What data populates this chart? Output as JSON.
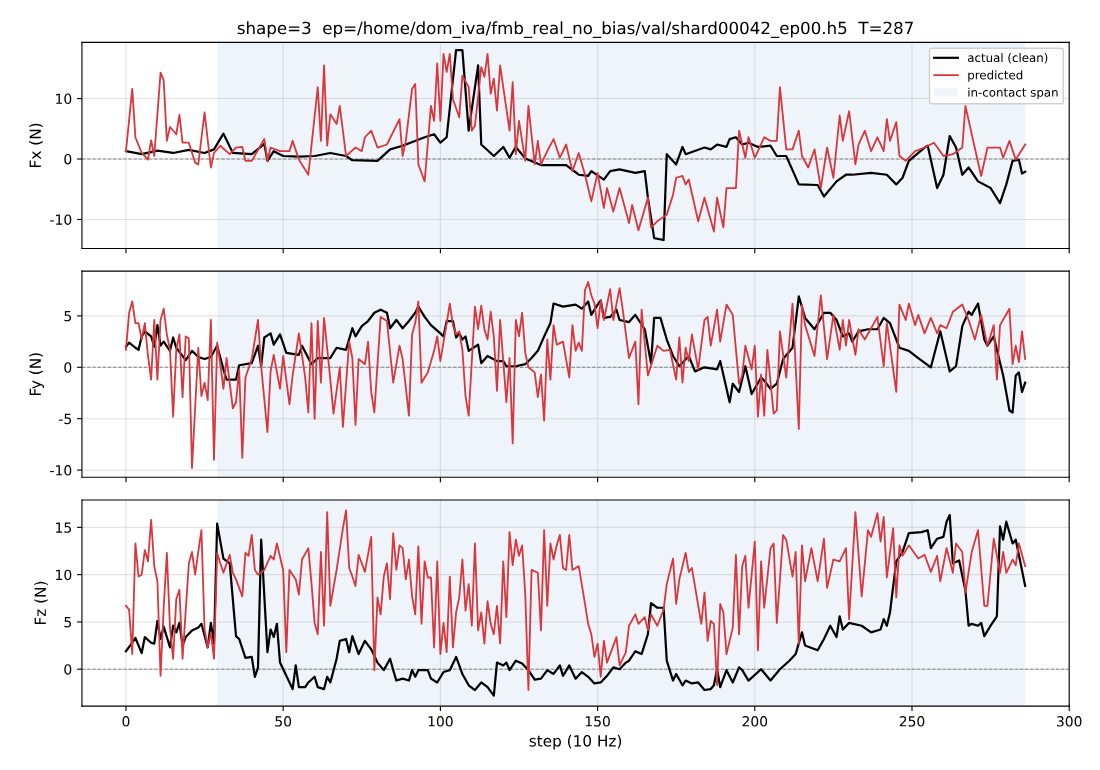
{
  "chart_data": [
    {
      "type": "line",
      "title": "shape=3  ep=/home/dom_iva/fmb_real_no_bias/val/shard00042_ep00.h5  T=287",
      "ylabel": "Fx (N)",
      "xlim": [
        -14,
        300
      ],
      "xticks": [
        0,
        50,
        100,
        150,
        200,
        250,
        300
      ],
      "ylim": [
        -14.8,
        19.3
      ],
      "yticks": [
        -10,
        0,
        10
      ],
      "grid": true,
      "legend": "top right",
      "tick_labels": "y",
      "bands": [
        {
          "axis": "x",
          "from": 29,
          "to": 286,
          "label": "in-contact span",
          "color": "#eef4f9"
        }
      ],
      "ref_lines": [
        {
          "axis": "y",
          "value": 0,
          "color": "#808080",
          "line_style": "dashed"
        }
      ],
      "series": [
        {
          "name": "actual (clean)",
          "color": "#000000",
          "x": [
            0,
            5,
            10,
            15,
            20,
            25,
            28,
            31,
            34,
            40,
            44,
            45,
            47,
            50,
            55,
            60,
            65,
            70,
            72,
            80,
            84,
            88,
            95,
            98,
            100,
            102,
            105,
            107,
            109,
            112,
            113,
            117,
            120,
            122,
            124,
            127,
            132,
            140,
            144,
            147,
            148,
            152,
            154,
            157,
            162,
            165,
            166,
            168,
            171,
            172,
            175,
            177,
            178,
            184,
            186,
            188,
            191,
            192,
            194,
            196,
            198,
            201,
            205,
            207,
            210,
            214,
            220,
            222,
            226,
            229,
            231,
            237,
            242,
            245,
            247,
            249,
            254,
            255,
            258,
            260,
            262,
            264,
            266,
            268,
            271,
            275,
            278,
            280,
            282,
            284,
            285,
            286
          ],
          "values": [
            1.3,
            0.8,
            1.4,
            1.0,
            1.5,
            1.0,
            1.6,
            4.2,
            1.0,
            0.8,
            2.5,
            -0.3,
            1.3,
            0.5,
            0.4,
            0.5,
            1.0,
            0.5,
            -0.2,
            -0.3,
            1.6,
            2.2,
            3.6,
            4.1,
            2.7,
            3.6,
            18.0,
            18.0,
            4.7,
            15.5,
            2.4,
            0.5,
            2.0,
            0.2,
            2.0,
            0.1,
            -1.0,
            -1.0,
            -2.6,
            -2.8,
            -2.0,
            -3.4,
            -2.0,
            -1.7,
            -2.3,
            -2.0,
            -6.4,
            -13.1,
            -13.4,
            0.8,
            -0.9,
            2.0,
            0.8,
            1.9,
            1.6,
            2.4,
            2.0,
            3.3,
            3.6,
            2.4,
            2.7,
            2.0,
            2.2,
            0.5,
            0.5,
            -4.2,
            -4.3,
            -6.2,
            -3.7,
            -2.6,
            -2.6,
            -2.3,
            -2.6,
            -4.2,
            -3.1,
            -0.3,
            1.9,
            2.2,
            -4.8,
            -2.6,
            3.8,
            1.9,
            -2.6,
            -1.4,
            -3.7,
            -4.8,
            -7.3,
            -4.2,
            -0.3,
            -0.1,
            -2.4,
            -2.1
          ]
        },
        {
          "name": "predicted",
          "color": "#d8373d",
          "x": [
            0,
            2,
            3,
            5,
            7,
            8,
            9,
            11,
            12,
            13,
            14,
            16,
            17,
            18,
            20,
            22,
            23,
            25,
            27,
            28,
            30,
            33,
            35,
            37,
            38,
            40,
            44,
            45,
            46,
            49,
            52,
            53,
            55,
            58,
            61,
            62,
            63,
            64,
            65,
            67,
            68,
            70,
            73,
            75,
            76,
            78,
            80,
            83,
            87,
            88,
            89,
            91,
            92,
            93,
            95,
            97,
            98,
            99,
            100,
            101,
            102,
            103,
            104,
            106,
            107,
            109,
            110,
            111,
            113,
            114,
            115,
            116,
            117,
            118,
            119,
            121,
            122,
            123,
            124,
            125,
            127,
            128,
            130,
            131,
            132,
            134,
            136,
            138,
            140,
            142,
            144,
            146,
            147,
            148,
            150,
            152,
            153,
            155,
            157,
            160,
            161,
            163,
            166,
            167,
            169,
            172,
            174,
            175,
            177,
            178,
            179,
            182,
            184,
            187,
            188,
            190,
            191,
            194,
            195,
            197,
            198,
            200,
            203,
            205,
            207,
            208,
            210,
            212,
            214,
            215,
            217,
            219,
            221,
            223,
            225,
            227,
            228,
            230,
            232,
            233,
            235,
            237,
            239,
            241,
            242,
            243,
            245,
            246,
            248,
            251,
            254,
            257,
            260,
            263,
            266,
            267,
            269,
            272,
            274,
            278,
            279,
            281,
            283,
            286
          ],
          "values": [
            1.3,
            11.6,
            3.6,
            1.0,
            -0.1,
            3.1,
            0.5,
            14.3,
            13.0,
            3.0,
            5.3,
            4.1,
            7.3,
            2.7,
            2.7,
            -0.6,
            -0.9,
            7.7,
            -1.4,
            1.0,
            2.2,
            0.8,
            1.9,
            2.0,
            -0.3,
            -0.3,
            3.3,
            -0.3,
            1.9,
            1.3,
            1.3,
            3.0,
            -0.1,
            -2.6,
            11.9,
            3.0,
            15.5,
            2.2,
            7.4,
            5.8,
            8.8,
            0.5,
            1.9,
            1.3,
            3.6,
            4.7,
            1.9,
            2.4,
            6.6,
            0.5,
            3.0,
            11.6,
            12.4,
            -0.9,
            -3.7,
            8.8,
            6.3,
            15.8,
            6.3,
            17.4,
            14.4,
            17.4,
            9.9,
            6.9,
            13.8,
            11.9,
            4.7,
            5.5,
            15.2,
            13.6,
            17.4,
            10.8,
            13.3,
            8.0,
            15.5,
            8.3,
            4.7,
            12.7,
            0.8,
            6.3,
            -0.3,
            8.8,
            -0.9,
            3.0,
            -0.9,
            1.3,
            3.3,
            0.2,
            2.4,
            -2.0,
            1.0,
            -2.6,
            -4.8,
            -7.0,
            -2.3,
            -8.1,
            -4.8,
            -8.7,
            -4.8,
            -10.6,
            -7.6,
            -11.8,
            -6.4,
            -11.3,
            -10.3,
            -9.2,
            -5.9,
            -3.1,
            -2.8,
            -4.2,
            -3.4,
            -10.3,
            -6.4,
            -12.0,
            -6.4,
            -11.3,
            -4.8,
            -4.8,
            4.7,
            0.2,
            3.6,
            0.2,
            3.6,
            3.0,
            3.0,
            11.9,
            1.6,
            1.6,
            4.7,
            0.5,
            -1.4,
            1.6,
            -4.8,
            1.9,
            -3.1,
            7.2,
            3.0,
            7.9,
            -0.9,
            2.4,
            4.7,
            1.3,
            3.6,
            1.3,
            6.6,
            3.0,
            6.1,
            0.5,
            -0.3,
            1.3,
            1.9,
            2.7,
            0.5,
            0.8,
            1.9,
            8.8,
            4.1,
            -2.8,
            1.9,
            1.9,
            0.2,
            3.0,
            -0.1,
            2.4
          ]
        }
      ]
    },
    {
      "type": "line",
      "ylabel": "Fy (N)",
      "xlim": [
        -14,
        300
      ],
      "xticks": [
        0,
        50,
        100,
        150,
        200,
        250,
        300
      ],
      "ylim": [
        -10.7,
        9.35
      ],
      "yticks": [
        -10,
        -5,
        0,
        5
      ],
      "grid": true,
      "tick_labels": "y",
      "bands": [
        {
          "axis": "x",
          "from": 29,
          "to": 286,
          "color": "#eef4f9"
        }
      ],
      "ref_lines": [
        {
          "axis": "y",
          "value": 0,
          "color": "#808080",
          "line_style": "dashed"
        }
      ],
      "series": [
        {
          "color": "#000000",
          "x": [
            0,
            1,
            3,
            4,
            5,
            6,
            8,
            9,
            10,
            11,
            12,
            14,
            15,
            16,
            19,
            21,
            23,
            25,
            27,
            29,
            31,
            32,
            35,
            36,
            40,
            42,
            43,
            44,
            46,
            47,
            49,
            51,
            55,
            56,
            59,
            61,
            65,
            67,
            70,
            72,
            73,
            75,
            77,
            79,
            81,
            83,
            84,
            86,
            88,
            90,
            92,
            93,
            95,
            97,
            100,
            101,
            102,
            104,
            105,
            106,
            107,
            108,
            109,
            111,
            112,
            113,
            115,
            118,
            120,
            121,
            124,
            127,
            129,
            131,
            133,
            135,
            136,
            139,
            143,
            145,
            147,
            148,
            150,
            151,
            152,
            154,
            156,
            157,
            160,
            162,
            165,
            167,
            168,
            170,
            172,
            174,
            176,
            179,
            181,
            184,
            188,
            189,
            192,
            193,
            195,
            197,
            199,
            202,
            203,
            205,
            207,
            209,
            212,
            214,
            216,
            219,
            222,
            224,
            226,
            228,
            230,
            231,
            233,
            236,
            239,
            241,
            243,
            246,
            249,
            252,
            256,
            259,
            262,
            264,
            266,
            268,
            269,
            271,
            273,
            274,
            276,
            277,
            279,
            281,
            282,
            283,
            284,
            285,
            286
          ],
          "values": [
            2.0,
            2.4,
            1.9,
            1.7,
            3.0,
            3.5,
            3.0,
            2.0,
            4.1,
            2.1,
            2.5,
            1.6,
            2.9,
            1.9,
            0.7,
            1.6,
            1.0,
            0.8,
            1.0,
            2.1,
            -0.2,
            -1.2,
            -1.2,
            0.2,
            0.4,
            2.1,
            0.1,
            2.9,
            3.3,
            2.2,
            3.2,
            1.4,
            1.2,
            2.1,
            0.3,
            0.9,
            0.9,
            1.9,
            1.7,
            3.8,
            3.0,
            4.0,
            4.5,
            5.3,
            5.6,
            5.3,
            3.8,
            4.6,
            3.8,
            4.5,
            5.3,
            5.9,
            4.9,
            4.1,
            3.3,
            3.0,
            4.5,
            4.5,
            2.9,
            3.3,
            2.7,
            3.0,
            1.6,
            2.0,
            2.2,
            0.4,
            1.1,
            0.6,
            0.6,
            0.1,
            0.1,
            0.3,
            0.9,
            1.6,
            3.0,
            4.3,
            6.2,
            5.9,
            6.1,
            5.7,
            6.4,
            5.1,
            6.1,
            6.5,
            4.8,
            4.9,
            5.6,
            4.6,
            4.4,
            5.1,
            3.7,
            0.4,
            4.8,
            4.8,
            2.7,
            1.1,
            0.1,
            1.1,
            -0.4,
            0.0,
            -0.2,
            0.6,
            -3.4,
            -1.6,
            -2.4,
            0.1,
            -2.6,
            -1.0,
            -1.3,
            -2.1,
            -1.6,
            0.8,
            1.9,
            6.9,
            4.8,
            3.7,
            5.3,
            5.3,
            4.6,
            3.0,
            3.3,
            2.5,
            3.5,
            3.7,
            3.7,
            4.8,
            4.3,
            1.9,
            1.6,
            0.9,
            0.0,
            3.5,
            -0.4,
            0.1,
            4.0,
            5.4,
            5.1,
            6.2,
            2.7,
            2.1,
            3.0,
            1.7,
            -0.8,
            -4.2,
            -4.4,
            -0.8,
            -0.5,
            -2.4,
            -1.5
          ]
        },
        {
          "color": "#d8373d",
          "x": [
            0,
            1,
            2,
            3,
            4,
            5,
            6,
            7,
            8,
            9,
            10,
            11,
            12,
            13,
            14,
            15,
            16,
            17,
            18,
            19,
            20,
            21,
            23,
            24,
            25,
            26,
            27,
            28,
            29,
            30,
            31,
            32,
            34,
            35,
            36,
            37,
            38,
            40,
            42,
            43,
            45,
            46,
            47,
            49,
            50,
            52,
            53,
            55,
            57,
            58,
            59,
            60,
            61,
            62,
            63,
            65,
            66,
            68,
            69,
            71,
            72,
            73,
            74,
            76,
            77,
            78,
            79,
            81,
            83,
            85,
            87,
            88,
            90,
            91,
            92,
            93,
            94,
            96,
            98,
            99,
            100,
            102,
            103,
            104,
            105,
            106,
            107,
            108,
            109,
            111,
            112,
            113,
            114,
            115,
            116,
            117,
            118,
            119,
            121,
            122,
            123,
            124,
            125,
            126,
            127,
            128,
            130,
            131,
            132,
            133,
            134,
            135,
            136,
            137,
            139,
            141,
            142,
            143,
            144,
            145,
            146,
            147,
            148,
            149,
            150,
            151,
            152,
            154,
            155,
            157,
            158,
            160,
            162,
            163,
            164,
            166,
            169,
            171,
            173,
            175,
            176,
            177,
            178,
            179,
            180,
            182,
            184,
            185,
            186,
            188,
            189,
            191,
            193,
            195,
            196,
            197,
            199,
            200,
            201,
            202,
            203,
            204,
            206,
            207,
            208,
            210,
            212,
            214,
            215,
            216,
            219,
            221,
            223,
            225,
            227,
            228,
            229,
            230,
            232,
            233,
            235,
            237,
            239,
            241,
            242,
            245,
            246,
            248,
            249,
            251,
            252,
            254,
            256,
            258,
            259,
            261,
            263,
            266,
            268,
            270,
            272,
            274,
            276,
            277,
            278,
            281,
            282,
            283,
            284,
            285,
            286
          ],
          "values": [
            1.7,
            5.3,
            6.4,
            4.3,
            4.3,
            2.7,
            4.3,
            1.1,
            -1.2,
            4.6,
            -1.2,
            4.6,
            5.7,
            3.2,
            1.7,
            -4.8,
            1.7,
            3.2,
            -2.9,
            3.0,
            2.8,
            -9.8,
            1.9,
            -2.8,
            -1.5,
            -3.2,
            4.6,
            -9.0,
            2.4,
            0.3,
            -2.1,
            0.9,
            -4.0,
            -3.4,
            -0.2,
            -8.8,
            -1.0,
            0.8,
            4.6,
            0.1,
            -6.3,
            -0.4,
            1.2,
            -2.1,
            1.1,
            -3.6,
            -0.8,
            3.3,
            -1.0,
            -4.4,
            4.3,
            -5.0,
            4.5,
            -1.5,
            4.8,
            -1.2,
            -4.5,
            0.0,
            -5.8,
            2.5,
            0.9,
            -5.6,
            0.8,
            0.3,
            2.5,
            -2.4,
            -4.4,
            4.9,
            4.5,
            -1.5,
            2.1,
            0.8,
            -4.7,
            3.2,
            4.3,
            6.4,
            -1.5,
            -0.5,
            1.6,
            3.0,
            0.6,
            4.3,
            6.2,
            4.1,
            3.2,
            3.5,
            1.7,
            -2.8,
            -4.7,
            5.9,
            3.7,
            6.0,
            3.7,
            2.7,
            5.4,
            3.0,
            -2.3,
            4.6,
            -3.4,
            0.9,
            -7.4,
            4.6,
            3.0,
            5.3,
            1.4,
            0.0,
            -0.5,
            -2.9,
            -0.7,
            -5.2,
            2.7,
            -1.2,
            4.1,
            2.2,
            2.5,
            -1.0,
            4.1,
            1.6,
            2.4,
            1.6,
            7.5,
            8.3,
            7.0,
            6.2,
            3.8,
            6.5,
            4.6,
            7.6,
            4.6,
            7.7,
            5.6,
            0.9,
            2.5,
            -3.6,
            5.6,
            -0.8,
            2.1,
            1.6,
            1.7,
            -1.2,
            2.9,
            -1.5,
            1.9,
            0.6,
            3.2,
            -0.2,
            4.6,
            4.9,
            2.1,
            5.6,
            2.5,
            6.1,
            5.1,
            -1.6,
            -0.8,
            2.1,
            -0.2,
            2.1,
            -4.8,
            -0.7,
            -4.7,
            1.7,
            -4.5,
            -4.2,
            3.5,
            -1.0,
            6.2,
            -6.0,
            6.1,
            4.1,
            1.1,
            7.0,
            0.8,
            5.1,
            1.7,
            4.6,
            2.1,
            4.6,
            1.2,
            3.7,
            2.7,
            3.8,
            4.9,
            0.1,
            4.3,
            -2.4,
            6.1,
            4.6,
            6.2,
            4.1,
            5.1,
            3.3,
            4.8,
            3.3,
            4.1,
            3.8,
            5.4,
            6.1,
            4.6,
            2.7,
            5.1,
            2.1,
            4.1,
            -1.2,
            4.1,
            5.7,
            0.3,
            2.1,
            0.5,
            3.5,
            0.8
          ]
        }
      ]
    },
    {
      "type": "line",
      "ylabel": "Fz (N)",
      "xlabel": "step (10 Hz)",
      "xlim": [
        -14,
        300
      ],
      "xticks": [
        0,
        50,
        100,
        150,
        200,
        250,
        300
      ],
      "ylim": [
        -3.9,
        17.9
      ],
      "yticks": [
        0,
        5,
        10,
        15
      ],
      "grid": true,
      "bands": [
        {
          "axis": "x",
          "from": 29,
          "to": 286,
          "color": "#eef4f9"
        }
      ],
      "ref_lines": [
        {
          "axis": "y",
          "value": 0,
          "color": "#808080",
          "line_style": "dashed"
        }
      ],
      "series": [
        {
          "color": "#000000",
          "x": [
            0,
            2,
            3,
            5,
            6,
            8,
            9,
            10,
            11,
            12,
            14,
            15,
            16,
            17,
            18,
            19,
            21,
            23,
            24,
            26,
            27,
            28,
            29,
            31,
            33,
            35,
            36,
            38,
            40,
            41,
            42,
            43,
            45,
            46,
            47,
            48,
            49,
            51,
            53,
            54,
            55,
            57,
            58,
            60,
            61,
            63,
            64,
            65,
            67,
            68,
            70,
            71,
            72,
            74,
            76,
            78,
            80,
            82,
            84,
            85,
            86,
            88,
            90,
            91,
            92,
            93,
            96,
            97,
            99,
            101,
            103,
            105,
            107,
            109,
            111,
            113,
            115,
            117,
            118,
            120,
            121,
            122,
            124,
            126,
            128,
            130,
            132,
            134,
            136,
            138,
            139,
            141,
            143,
            145,
            147,
            149,
            151,
            153,
            155,
            157,
            159,
            160,
            162,
            164,
            166,
            167,
            169,
            171,
            172,
            174,
            175,
            177,
            178,
            180,
            182,
            184,
            186,
            187,
            188,
            189,
            191,
            193,
            195,
            196,
            198,
            202,
            204,
            205,
            208,
            211,
            213,
            215,
            216,
            220,
            222,
            224,
            226,
            227,
            228,
            230,
            234,
            237,
            240,
            241,
            242,
            243,
            245,
            247,
            249,
            253,
            255,
            256,
            258,
            260,
            261,
            262,
            263,
            265,
            267,
            268,
            269,
            271,
            272,
            273,
            275,
            277,
            278,
            279,
            280,
            282,
            283,
            286
          ],
          "values": [
            1.9,
            2.8,
            3.3,
            1.7,
            3.4,
            2.8,
            2.7,
            5.1,
            3.2,
            4.5,
            2.3,
            4.6,
            3.9,
            4.9,
            2.5,
            3.4,
            4.1,
            4.4,
            4.8,
            2.3,
            4.9,
            2.7,
            15.4,
            11.7,
            11.2,
            3.5,
            3.2,
            1.2,
            1.3,
            -0.8,
            0.2,
            13.7,
            1.8,
            4.2,
            3.4,
            4.8,
            0.7,
            -0.7,
            -2.1,
            0.4,
            -1.9,
            -1.9,
            -1.4,
            -0.8,
            -1.9,
            -2.1,
            -0.8,
            -1.4,
            1.1,
            3.0,
            3.2,
            1.8,
            3.5,
            1.6,
            3.0,
            2.1,
            0.7,
            -0.1,
            1.1,
            -0.1,
            -1.2,
            -1.0,
            -1.2,
            -0.1,
            -0.8,
            -0.1,
            -0.1,
            -1.0,
            -1.4,
            -0.3,
            -0.1,
            1.3,
            -0.5,
            -1.7,
            -2.2,
            -1.4,
            -1.9,
            -2.8,
            0.7,
            0.4,
            0.7,
            -0.1,
            0.9,
            0.6,
            -0.1,
            -1.1,
            -1.0,
            -0.1,
            -0.5,
            0.4,
            -0.7,
            0.4,
            -1.0,
            -0.3,
            -0.8,
            -1.5,
            -1.4,
            -0.7,
            0.2,
            0.0,
            0.7,
            0.9,
            1.9,
            1.6,
            3.7,
            7.0,
            6.5,
            6.5,
            0.9,
            -1.2,
            -0.5,
            -1.7,
            -1.2,
            -1.5,
            -1.4,
            -2.2,
            -2.1,
            -1.7,
            0.0,
            -1.9,
            -0.1,
            -1.4,
            0.2,
            -0.1,
            -1.2,
            0.0,
            -0.8,
            -1.2,
            0.0,
            0.9,
            1.6,
            3.9,
            2.5,
            2.0,
            3.2,
            4.6,
            3.4,
            5.6,
            4.2,
            4.9,
            4.6,
            3.9,
            4.2,
            5.3,
            4.6,
            6.0,
            11.4,
            12.4,
            14.4,
            14.5,
            14.7,
            12.8,
            13.8,
            14.0,
            15.6,
            16.3,
            11.2,
            11.5,
            8.3,
            4.6,
            4.8,
            4.6,
            4.9,
            3.5,
            4.6,
            5.6,
            15.1,
            13.7,
            15.6,
            13.3,
            13.7,
            8.8
          ]
        },
        {
          "color": "#d8373d",
          "x": [
            0,
            1,
            2,
            3,
            4,
            5,
            6,
            7,
            8,
            9,
            10,
            11,
            12,
            13,
            14,
            15,
            16,
            17,
            18,
            20,
            21,
            22,
            23,
            24,
            25,
            26,
            27,
            28,
            29,
            30,
            31,
            33,
            34,
            35,
            37,
            38,
            39,
            40,
            41,
            42,
            44,
            46,
            47,
            48,
            50,
            51,
            52,
            54,
            55,
            56,
            58,
            59,
            60,
            61,
            62,
            63,
            64,
            65,
            66,
            67,
            69,
            70,
            71,
            72,
            73,
            74,
            76,
            78,
            79,
            80,
            81,
            82,
            83,
            84,
            85,
            86,
            87,
            88,
            89,
            90,
            91,
            92,
            93,
            94,
            95,
            96,
            97,
            98,
            99,
            100,
            101,
            102,
            103,
            104,
            105,
            106,
            107,
            108,
            109,
            110,
            111,
            112,
            113,
            114,
            115,
            116,
            117,
            118,
            119,
            120,
            121,
            122,
            123,
            124,
            125,
            126,
            127,
            128,
            129,
            131,
            132,
            133,
            134,
            135,
            136,
            137,
            138,
            139,
            140,
            141,
            142,
            144,
            146,
            147,
            148,
            149,
            150,
            151,
            152,
            153,
            155,
            156,
            157,
            159,
            160,
            162,
            163,
            165,
            166,
            167,
            169,
            171,
            172,
            174,
            175,
            176,
            178,
            179,
            180,
            183,
            184,
            185,
            186,
            187,
            188,
            189,
            190,
            191,
            193,
            194,
            195,
            196,
            197,
            198,
            200,
            201,
            202,
            203,
            205,
            206,
            207,
            209,
            210,
            212,
            213,
            214,
            215,
            216,
            218,
            220,
            222,
            223,
            225,
            227,
            229,
            230,
            232,
            234,
            236,
            237,
            239,
            240,
            241,
            242,
            244,
            245,
            246,
            247,
            249,
            252,
            254,
            256,
            258,
            259,
            261,
            263,
            264,
            266,
            267,
            269,
            271,
            273,
            274,
            276,
            278,
            279,
            280,
            282,
            283,
            284,
            286
          ],
          "values": [
            6.7,
            6.3,
            1.6,
            13.3,
            9.8,
            10.0,
            12.6,
            11.4,
            15.8,
            10.9,
            9.3,
            -0.7,
            6.5,
            12.3,
            4.4,
            1.1,
            7.4,
            8.4,
            1.1,
            11.2,
            12.4,
            10.0,
            12.4,
            14.7,
            4.2,
            2.3,
            3.9,
            1.1,
            12.3,
            11.2,
            10.2,
            12.1,
            10.2,
            9.5,
            7.7,
            12.3,
            12.0,
            14.2,
            10.5,
            10.0,
            10.5,
            12.0,
            11.6,
            13.3,
            10.5,
            1.8,
            10.5,
            9.5,
            7.9,
            11.6,
            12.8,
            9.1,
            4.9,
            3.7,
            12.4,
            4.6,
            16.6,
            6.7,
            8.6,
            10.5,
            14.9,
            16.8,
            10.7,
            9.8,
            8.8,
            12.1,
            10.3,
            14.0,
            -0.1,
            7.6,
            5.8,
            9.8,
            11.2,
            7.4,
            14.4,
            10.5,
            13.1,
            12.8,
            9.5,
            11.6,
            7.7,
            5.8,
            13.0,
            4.8,
            11.4,
            9.7,
            9.7,
            2.3,
            11.4,
            1.6,
            4.9,
            1.8,
            9.8,
            2.3,
            6.0,
            7.6,
            11.6,
            6.2,
            9.0,
            4.6,
            13.3,
            4.1,
            6.0,
            2.7,
            7.2,
            4.8,
            3.7,
            6.7,
            2.7,
            11.4,
            5.5,
            14.5,
            11.0,
            13.7,
            12.0,
            13.1,
            7.9,
            -2.2,
            10.5,
            10.2,
            4.1,
            14.7,
            6.7,
            13.3,
            11.6,
            13.1,
            14.2,
            10.7,
            10.5,
            14.2,
            10.5,
            10.9,
            6.9,
            4.8,
            3.7,
            1.3,
            2.7,
            -0.8,
            3.0,
            0.7,
            2.5,
            3.4,
            0.4,
            1.8,
            4.6,
            5.8,
            4.8,
            5.5,
            4.1,
            5.8,
            4.6,
            6.3,
            9.0,
            11.7,
            6.9,
            9.5,
            12.3,
            10.3,
            10.7,
            4.8,
            8.1,
            3.0,
            5.1,
            4.8,
            -1.7,
            6.9,
            6.0,
            1.6,
            4.4,
            12.1,
            3.7,
            10.9,
            12.0,
            6.5,
            13.5,
            2.0,
            11.4,
            6.5,
            12.8,
            13.3,
            4.9,
            14.2,
            13.7,
            9.8,
            12.4,
            2.7,
            13.1,
            9.3,
            12.8,
            9.3,
            13.8,
            8.6,
            11.6,
            11.4,
            12.8,
            5.3,
            16.6,
            7.7,
            14.7,
            14.0,
            16.5,
            13.5,
            16.1,
            9.7,
            14.9,
            7.6,
            13.1,
            12.0,
            13.1,
            11.7,
            12.1,
            10.3,
            12.0,
            9.3,
            12.8,
            10.2,
            13.3,
            12.4,
            8.1,
            12.4,
            14.7,
            6.7,
            6.7,
            13.8,
            10.2,
            12.4,
            10.2,
            11.6,
            11.0,
            13.3,
            10.9
          ]
        }
      ]
    }
  ]
}
